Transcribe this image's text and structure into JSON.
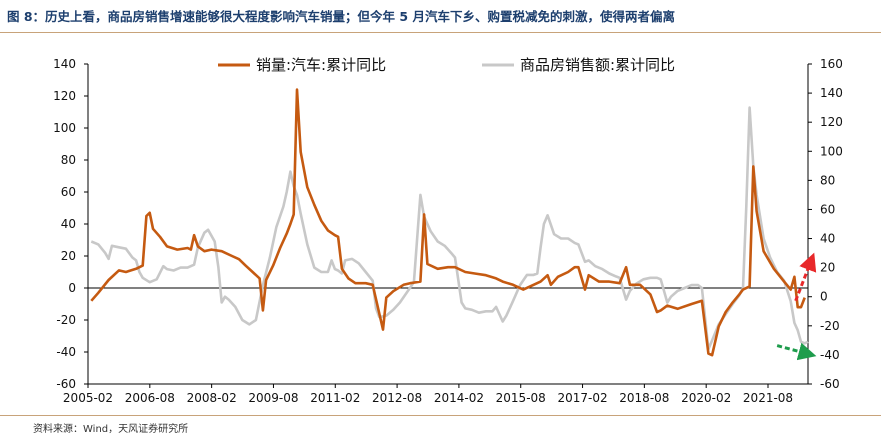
{
  "title": "图 8：历史上看，商品房销售增速能够很大程度影响汽车销量；但今年 5 月汽车下乡、购置税减免的刺激，使得两者偏离",
  "source": "资料来源：Wind，天风证券研究所",
  "colors": {
    "auto": "#c55a11",
    "housing": "#c8c8c8",
    "red_arrow": "#e8282a",
    "green_arrow": "#1e9c4c"
  },
  "chart_data": {
    "type": "line",
    "x_tick_labels": [
      "2005-02",
      "2006-08",
      "2008-02",
      "2009-08",
      "2011-02",
      "2012-08",
      "2014-02",
      "2015-08",
      "2017-02",
      "2018-08",
      "2020-02",
      "2021-08"
    ],
    "x_range": [
      2005.0,
      2022.5
    ],
    "y_left": {
      "range": [
        -60,
        140
      ],
      "ticks": [
        -60,
        -40,
        -20,
        0,
        20,
        40,
        60,
        80,
        100,
        120,
        140
      ]
    },
    "y_right": {
      "range": [
        -60,
        160
      ],
      "ticks": [
        -60,
        -40,
        -20,
        0,
        20,
        40,
        60,
        80,
        100,
        120,
        140,
        160
      ]
    },
    "legend": {
      "position": "top",
      "entries": [
        "销量:汽车:累计同比",
        "商品房销售额:累计同比"
      ]
    },
    "series": [
      {
        "name": "销量:汽车:累计同比",
        "axis": "left",
        "points": [
          [
            2005.08,
            -8
          ],
          [
            2005.25,
            -3
          ],
          [
            2005.5,
            5
          ],
          [
            2005.75,
            11
          ],
          [
            2005.92,
            10
          ],
          [
            2006.17,
            12
          ],
          [
            2006.33,
            14
          ],
          [
            2006.42,
            45
          ],
          [
            2006.5,
            47
          ],
          [
            2006.58,
            37
          ],
          [
            2006.75,
            32
          ],
          [
            2006.92,
            26
          ],
          [
            2007.17,
            24
          ],
          [
            2007.42,
            25
          ],
          [
            2007.5,
            24
          ],
          [
            2007.58,
            33
          ],
          [
            2007.67,
            26
          ],
          [
            2007.83,
            23
          ],
          [
            2008.0,
            24
          ],
          [
            2008.25,
            23
          ],
          [
            2008.5,
            20
          ],
          [
            2008.67,
            18
          ],
          [
            2008.83,
            14
          ],
          [
            2009.0,
            10
          ],
          [
            2009.17,
            6
          ],
          [
            2009.25,
            -14
          ],
          [
            2009.33,
            5
          ],
          [
            2009.5,
            14
          ],
          [
            2009.67,
            25
          ],
          [
            2009.83,
            34
          ],
          [
            2009.92,
            40
          ],
          [
            2010.0,
            46
          ],
          [
            2010.08,
            124
          ],
          [
            2010.17,
            85
          ],
          [
            2010.33,
            63
          ],
          [
            2010.5,
            52
          ],
          [
            2010.67,
            42
          ],
          [
            2010.83,
            36
          ],
          [
            2011.0,
            33
          ],
          [
            2011.08,
            32
          ],
          [
            2011.17,
            12
          ],
          [
            2011.33,
            6
          ],
          [
            2011.5,
            3
          ],
          [
            2011.75,
            3
          ],
          [
            2011.92,
            2
          ],
          [
            2012.17,
            -26
          ],
          [
            2012.25,
            -6
          ],
          [
            2012.42,
            -2
          ],
          [
            2012.67,
            2
          ],
          [
            2012.83,
            3
          ],
          [
            2013.08,
            4
          ],
          [
            2013.17,
            46
          ],
          [
            2013.25,
            15
          ],
          [
            2013.5,
            12
          ],
          [
            2013.75,
            13
          ],
          [
            2013.92,
            13
          ],
          [
            2014.17,
            10
          ],
          [
            2014.42,
            9
          ],
          [
            2014.67,
            8
          ],
          [
            2014.92,
            6
          ],
          [
            2015.08,
            4
          ],
          [
            2015.33,
            2
          ],
          [
            2015.58,
            -1
          ],
          [
            2015.83,
            2
          ],
          [
            2016.0,
            4
          ],
          [
            2016.17,
            8
          ],
          [
            2016.25,
            2
          ],
          [
            2016.42,
            7
          ],
          [
            2016.67,
            10
          ],
          [
            2016.83,
            13
          ],
          [
            2016.92,
            13
          ],
          [
            2017.08,
            -1
          ],
          [
            2017.17,
            8
          ],
          [
            2017.42,
            4
          ],
          [
            2017.67,
            4
          ],
          [
            2017.92,
            3
          ],
          [
            2018.08,
            13
          ],
          [
            2018.17,
            2
          ],
          [
            2018.42,
            2
          ],
          [
            2018.67,
            -4
          ],
          [
            2018.83,
            -15
          ],
          [
            2018.92,
            -14
          ],
          [
            2019.08,
            -11
          ],
          [
            2019.33,
            -13
          ],
          [
            2019.67,
            -10
          ],
          [
            2019.92,
            -8
          ],
          [
            2020.08,
            -41
          ],
          [
            2020.17,
            -42
          ],
          [
            2020.33,
            -24
          ],
          [
            2020.5,
            -15
          ],
          [
            2020.67,
            -9
          ],
          [
            2020.83,
            -4
          ],
          [
            2020.92,
            -1
          ],
          [
            2021.08,
            1
          ],
          [
            2021.17,
            76
          ],
          [
            2021.25,
            48
          ],
          [
            2021.42,
            23
          ],
          [
            2021.67,
            12
          ],
          [
            2021.92,
            4
          ],
          [
            2022.08,
            -1
          ],
          [
            2022.17,
            7
          ],
          [
            2022.25,
            -12
          ],
          [
            2022.33,
            -12
          ],
          [
            2022.42,
            -6
          ]
        ]
      },
      {
        "name": "商品房销售额:累计同比",
        "axis": "right",
        "points": [
          [
            2005.08,
            38
          ],
          [
            2005.25,
            36
          ],
          [
            2005.42,
            30
          ],
          [
            2005.5,
            26
          ],
          [
            2005.58,
            35
          ],
          [
            2005.75,
            34
          ],
          [
            2005.92,
            33
          ],
          [
            2006.08,
            27
          ],
          [
            2006.17,
            25
          ],
          [
            2006.25,
            17
          ],
          [
            2006.33,
            13
          ],
          [
            2006.5,
            10
          ],
          [
            2006.67,
            12
          ],
          [
            2006.83,
            21
          ],
          [
            2006.92,
            19
          ],
          [
            2007.08,
            18
          ],
          [
            2007.25,
            20
          ],
          [
            2007.42,
            20
          ],
          [
            2007.58,
            22
          ],
          [
            2007.67,
            34
          ],
          [
            2007.83,
            44
          ],
          [
            2007.92,
            46
          ],
          [
            2008.08,
            38
          ],
          [
            2008.17,
            20
          ],
          [
            2008.25,
            -4
          ],
          [
            2008.33,
            0
          ],
          [
            2008.42,
            -2
          ],
          [
            2008.58,
            -7
          ],
          [
            2008.75,
            -16
          ],
          [
            2008.92,
            -19
          ],
          [
            2009.08,
            -16
          ],
          [
            2009.25,
            8
          ],
          [
            2009.42,
            27
          ],
          [
            2009.58,
            48
          ],
          [
            2009.75,
            62
          ],
          [
            2009.83,
            72
          ],
          [
            2009.92,
            86
          ],
          [
            2010.0,
            76
          ],
          [
            2010.08,
            70
          ],
          [
            2010.17,
            57
          ],
          [
            2010.33,
            36
          ],
          [
            2010.5,
            20
          ],
          [
            2010.67,
            17
          ],
          [
            2010.83,
            17
          ],
          [
            2010.92,
            25
          ],
          [
            2011.0,
            19
          ],
          [
            2011.08,
            18
          ],
          [
            2011.17,
            16
          ],
          [
            2011.25,
            25
          ],
          [
            2011.42,
            26
          ],
          [
            2011.58,
            23
          ],
          [
            2011.75,
            17
          ],
          [
            2011.92,
            11
          ],
          [
            2012.0,
            -8
          ],
          [
            2012.08,
            -14
          ],
          [
            2012.25,
            -13
          ],
          [
            2012.42,
            -9
          ],
          [
            2012.58,
            -4
          ],
          [
            2012.75,
            3
          ],
          [
            2012.92,
            10
          ],
          [
            2013.08,
            70
          ],
          [
            2013.17,
            55
          ],
          [
            2013.33,
            45
          ],
          [
            2013.5,
            38
          ],
          [
            2013.67,
            35
          ],
          [
            2013.83,
            30
          ],
          [
            2013.92,
            27
          ],
          [
            2014.08,
            -4
          ],
          [
            2014.17,
            -8
          ],
          [
            2014.33,
            -9
          ],
          [
            2014.5,
            -11
          ],
          [
            2014.67,
            -10
          ],
          [
            2014.83,
            -10
          ],
          [
            2014.92,
            -7
          ],
          [
            2015.08,
            -17
          ],
          [
            2015.17,
            -13
          ],
          [
            2015.33,
            -3
          ],
          [
            2015.5,
            8
          ],
          [
            2015.67,
            15
          ],
          [
            2015.83,
            15
          ],
          [
            2015.92,
            16
          ],
          [
            2016.0,
            34
          ],
          [
            2016.08,
            50
          ],
          [
            2016.17,
            56
          ],
          [
            2016.33,
            43
          ],
          [
            2016.5,
            40
          ],
          [
            2016.67,
            40
          ],
          [
            2016.83,
            37
          ],
          [
            2016.92,
            36
          ],
          [
            2017.08,
            24
          ],
          [
            2017.17,
            25
          ],
          [
            2017.33,
            21
          ],
          [
            2017.5,
            19
          ],
          [
            2017.67,
            16
          ],
          [
            2017.83,
            14
          ],
          [
            2017.92,
            13
          ],
          [
            2018.08,
            -2
          ],
          [
            2018.17,
            4
          ],
          [
            2018.33,
            9
          ],
          [
            2018.5,
            12
          ],
          [
            2018.67,
            13
          ],
          [
            2018.83,
            13
          ],
          [
            2018.92,
            12
          ],
          [
            2019.08,
            -4
          ],
          [
            2019.17,
            0
          ],
          [
            2019.33,
            4
          ],
          [
            2019.5,
            6
          ],
          [
            2019.67,
            8
          ],
          [
            2019.83,
            8
          ],
          [
            2019.92,
            6
          ],
          [
            2020.08,
            -36
          ],
          [
            2020.17,
            -30
          ],
          [
            2020.33,
            -19
          ],
          [
            2020.5,
            -12
          ],
          [
            2020.67,
            -5
          ],
          [
            2020.83,
            1
          ],
          [
            2020.92,
            6
          ],
          [
            2021.0,
            62
          ],
          [
            2021.08,
            130
          ],
          [
            2021.17,
            90
          ],
          [
            2021.25,
            70
          ],
          [
            2021.42,
            40
          ],
          [
            2021.58,
            27
          ],
          [
            2021.75,
            17
          ],
          [
            2021.92,
            11
          ],
          [
            2022.08,
            -3
          ],
          [
            2022.17,
            -18
          ],
          [
            2022.25,
            -23
          ],
          [
            2022.33,
            -31
          ],
          [
            2022.42,
            -32
          ],
          [
            2022.5,
            -31
          ]
        ]
      }
    ],
    "annotations": [
      {
        "kind": "dashed-arrow",
        "color": "red",
        "from": [
          2022.2,
          -8
        ],
        "to": [
          2022.62,
          20
        ],
        "axis": "left"
      },
      {
        "kind": "dashed-arrow",
        "color": "green",
        "from": [
          2021.75,
          -36
        ],
        "to": [
          2022.62,
          -42
        ],
        "axis": "left"
      }
    ]
  }
}
